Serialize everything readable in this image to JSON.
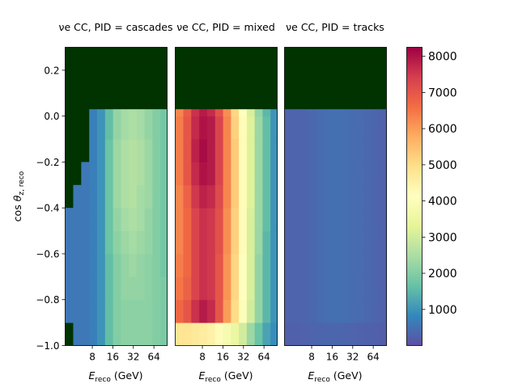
{
  "chart_data": {
    "type": "heatmap",
    "shared_y": {
      "label": "cos θz, reco",
      "range": [
        -1.0,
        0.3
      ],
      "ticks": [
        0.2,
        0.0,
        -0.2,
        -0.4,
        -0.6,
        -0.8,
        -1.0
      ],
      "tick_labels": [
        "0.2",
        "0.0",
        "−0.2",
        "−0.4",
        "−0.6",
        "−0.8",
        "−1.0"
      ]
    },
    "shared_x": {
      "label": "Ereco (GeV)",
      "scale": "log",
      "range": [
        3.2,
        100
      ],
      "ticks": [
        8,
        16,
        32,
        64
      ],
      "tick_labels": [
        "8",
        "16",
        "32",
        "64"
      ]
    },
    "fill_color": "#003300",
    "colormap": "Spectral_r",
    "colorbar": {
      "range": [
        0,
        8250
      ],
      "ticks": [
        1000,
        2000,
        3000,
        4000,
        5000,
        6000,
        7000,
        8000
      ],
      "tick_labels": [
        "1000",
        "2000",
        "3000",
        "4000",
        "5000",
        "6000",
        "7000",
        "8000"
      ]
    },
    "panels": [
      {
        "title": "νe CC,  PID = cascades",
        "x_edges": [
          3.2,
          4.2,
          5.5,
          7.2,
          9.4,
          12.3,
          16.1,
          21.0,
          27.4,
          35.8,
          46.7,
          61.0,
          79.6,
          100
        ],
        "y_edges": [
          -1.0,
          -0.9,
          -0.8,
          -0.7,
          -0.6,
          -0.5,
          -0.4,
          -0.3,
          -0.2,
          -0.1,
          0.0,
          0.03
        ],
        "values": [
          [
            null,
            600,
            600,
            700,
            1000,
            1600,
            2000,
            2100,
            2100,
            2100,
            2100,
            2000,
            1900
          ],
          [
            600,
            600,
            600,
            700,
            1000,
            1600,
            2000,
            2100,
            2100,
            2100,
            2100,
            2000,
            1900
          ],
          [
            600,
            600,
            600,
            700,
            1000,
            1600,
            2000,
            2200,
            2200,
            2200,
            2100,
            2000,
            1900
          ],
          [
            600,
            600,
            600,
            700,
            1000,
            1600,
            2000,
            2200,
            2300,
            2200,
            2100,
            2000,
            1800
          ],
          [
            600,
            600,
            600,
            700,
            1000,
            1700,
            2100,
            2300,
            2400,
            2300,
            2200,
            2000,
            1800
          ],
          [
            600,
            600,
            600,
            700,
            1000,
            1700,
            2200,
            2400,
            2500,
            2400,
            2200,
            2000,
            1800
          ],
          [
            null,
            600,
            600,
            700,
            1000,
            1700,
            2300,
            2500,
            2600,
            2400,
            2300,
            2000,
            1800
          ],
          [
            null,
            null,
            600,
            700,
            1000,
            1700,
            2300,
            2500,
            2600,
            2500,
            2300,
            2000,
            1800
          ],
          [
            null,
            null,
            null,
            700,
            1000,
            1700,
            2300,
            2500,
            2600,
            2500,
            2300,
            2000,
            1800
          ],
          [
            null,
            null,
            null,
            700,
            1000,
            1600,
            2200,
            2400,
            2500,
            2400,
            2200,
            2000,
            1800
          ],
          [
            null,
            null,
            null,
            700,
            1000,
            1600,
            2200,
            2400,
            2500,
            2400,
            2200,
            2000,
            1800
          ]
        ]
      },
      {
        "title": "νe CC,  PID = mixed",
        "x_edges": [
          3.2,
          4.2,
          5.5,
          7.2,
          9.4,
          12.3,
          16.1,
          21.0,
          27.4,
          35.8,
          46.7,
          61.0,
          79.6,
          100
        ],
        "y_edges": [
          -1.0,
          -0.9,
          -0.8,
          -0.7,
          -0.6,
          -0.5,
          -0.4,
          -0.3,
          -0.2,
          -0.1,
          0.0,
          0.03
        ],
        "values": [
          [
            4800,
            4800,
            4700,
            4600,
            4500,
            4200,
            3800,
            3500,
            3000,
            2300,
            1700,
            1200,
            900
          ],
          [
            6700,
            7000,
            7600,
            7900,
            7700,
            7000,
            6000,
            5000,
            4000,
            3000,
            2200,
            1500,
            1000
          ],
          [
            6500,
            6800,
            7300,
            7600,
            7500,
            7000,
            6100,
            5100,
            4100,
            3100,
            2200,
            1500,
            1000
          ],
          [
            6400,
            6700,
            7300,
            7600,
            7500,
            7000,
            6100,
            5100,
            4100,
            3100,
            2200,
            1500,
            1000
          ],
          [
            6300,
            6700,
            7300,
            7600,
            7500,
            7100,
            6200,
            5200,
            4200,
            3100,
            2300,
            1500,
            1000
          ],
          [
            6300,
            6700,
            7300,
            7600,
            7500,
            7100,
            6200,
            5200,
            4200,
            3100,
            2300,
            1600,
            1000
          ],
          [
            6300,
            6800,
            7500,
            7800,
            7700,
            7200,
            6300,
            5300,
            4200,
            3200,
            2300,
            1600,
            1000
          ],
          [
            6400,
            7000,
            7700,
            8000,
            7900,
            7300,
            6300,
            5300,
            4200,
            3200,
            2300,
            1600,
            1000
          ],
          [
            6400,
            7000,
            7800,
            8100,
            7900,
            7300,
            6300,
            5300,
            4200,
            3200,
            2300,
            1600,
            1000
          ],
          [
            6400,
            7000,
            7700,
            8000,
            7900,
            7300,
            6300,
            5200,
            4200,
            3200,
            2300,
            1600,
            1000
          ],
          [
            6300,
            6900,
            7600,
            7900,
            7700,
            7100,
            6200,
            5100,
            4100,
            3100,
            2200,
            1500,
            1000
          ]
        ]
      },
      {
        "title": "νe CC,  PID = tracks",
        "x_edges": [
          3.2,
          4.2,
          5.5,
          7.2,
          9.4,
          12.3,
          16.1,
          21.0,
          27.4,
          35.8,
          46.7,
          61.0,
          79.6,
          100
        ],
        "y_edges": [
          -1.0,
          -0.9,
          -0.8,
          -0.7,
          -0.6,
          -0.5,
          -0.4,
          -0.3,
          -0.2,
          -0.1,
          0.0,
          0.03
        ],
        "values": [
          [
            250,
            250,
            270,
            300,
            320,
            330,
            330,
            320,
            300,
            280,
            260,
            240,
            220
          ],
          [
            300,
            300,
            320,
            360,
            420,
            460,
            480,
            470,
            440,
            400,
            360,
            320,
            280
          ],
          [
            300,
            300,
            320,
            360,
            420,
            460,
            480,
            470,
            440,
            400,
            360,
            320,
            280
          ],
          [
            300,
            300,
            320,
            360,
            420,
            460,
            480,
            470,
            440,
            400,
            360,
            320,
            280
          ],
          [
            300,
            300,
            320,
            360,
            420,
            460,
            480,
            470,
            440,
            400,
            360,
            320,
            280
          ],
          [
            300,
            300,
            320,
            360,
            420,
            460,
            480,
            470,
            440,
            400,
            360,
            320,
            280
          ],
          [
            300,
            300,
            320,
            360,
            420,
            460,
            480,
            470,
            440,
            400,
            360,
            320,
            280
          ],
          [
            300,
            300,
            320,
            360,
            420,
            460,
            480,
            470,
            440,
            400,
            360,
            320,
            280
          ],
          [
            300,
            300,
            320,
            360,
            420,
            460,
            480,
            470,
            440,
            400,
            360,
            320,
            280
          ],
          [
            300,
            300,
            320,
            360,
            420,
            460,
            480,
            470,
            440,
            400,
            360,
            320,
            280
          ],
          [
            300,
            300,
            320,
            360,
            420,
            460,
            480,
            470,
            440,
            400,
            360,
            320,
            280
          ]
        ]
      }
    ]
  }
}
